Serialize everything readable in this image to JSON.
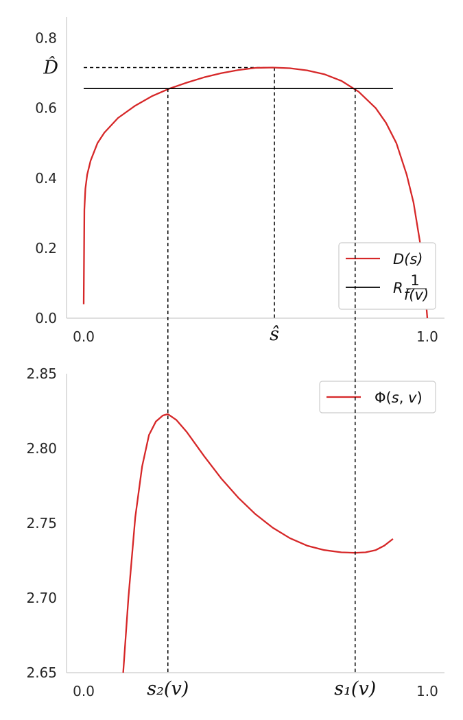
{
  "chart_data": [
    {
      "type": "line",
      "title": "",
      "xlabel": "",
      "ylabel": "",
      "xlim": [
        -0.05,
        1.05
      ],
      "ylim": [
        0.0,
        0.86
      ],
      "xticks": [
        {
          "value": 0.0,
          "label": "0.0"
        },
        {
          "value": 0.555,
          "label": "ŝ"
        },
        {
          "value": 1.0,
          "label": "1.0"
        }
      ],
      "yticks": [
        {
          "value": 0.0,
          "label": "0.0"
        },
        {
          "value": 0.2,
          "label": "0.2"
        },
        {
          "value": 0.4,
          "label": "0.4"
        },
        {
          "value": 0.6,
          "label": "0.6"
        },
        {
          "value": 0.8,
          "label": "0.8"
        }
      ],
      "extra_ytick": {
        "value": 0.716,
        "label": "D̂"
      },
      "grid": false,
      "legend_position": "lower-right",
      "series": [
        {
          "name": "D(s)",
          "color": "#d62728",
          "x": [
            0.0,
            0.002,
            0.005,
            0.01,
            0.02,
            0.04,
            0.06,
            0.1,
            0.15,
            0.2,
            0.25,
            0.3,
            0.35,
            0.4,
            0.45,
            0.5,
            0.55,
            0.6,
            0.65,
            0.7,
            0.75,
            0.8,
            0.85,
            0.88,
            0.91,
            0.94,
            0.96,
            0.98,
            0.99,
            1.0
          ],
          "y": [
            0.04,
            0.31,
            0.37,
            0.41,
            0.45,
            0.5,
            0.53,
            0.572,
            0.607,
            0.635,
            0.656,
            0.673,
            0.688,
            0.7,
            0.709,
            0.715,
            0.716,
            0.714,
            0.708,
            0.697,
            0.678,
            0.647,
            0.6,
            0.558,
            0.5,
            0.41,
            0.33,
            0.21,
            0.12,
            0.0
          ]
        },
        {
          "name": "R 1/f(v)",
          "color": "#000000",
          "x": [
            0.0,
            0.9
          ],
          "y": [
            0.656,
            0.656
          ]
        }
      ]
    },
    {
      "type": "line",
      "title": "",
      "xlabel": "",
      "ylabel": "",
      "xlim": [
        -0.05,
        1.05
      ],
      "ylim": [
        2.65,
        2.85
      ],
      "xticks": [
        {
          "value": 0.0,
          "label": "0.0"
        },
        {
          "value": 0.245,
          "label": "s₂(v)"
        },
        {
          "value": 0.79,
          "label": "s₁(v)"
        },
        {
          "value": 1.0,
          "label": "1.0"
        }
      ],
      "yticks": [
        {
          "value": 2.65,
          "label": "2.65"
        },
        {
          "value": 2.7,
          "label": "2.70"
        },
        {
          "value": 2.75,
          "label": "2.75"
        },
        {
          "value": 2.8,
          "label": "2.80"
        },
        {
          "value": 2.85,
          "label": "2.85"
        }
      ],
      "grid": false,
      "legend_position": "upper-right",
      "series": [
        {
          "name": "Φ(s, v)",
          "color": "#d62728",
          "x": [
            0.115,
            0.13,
            0.15,
            0.17,
            0.19,
            0.21,
            0.23,
            0.245,
            0.27,
            0.3,
            0.35,
            0.4,
            0.45,
            0.5,
            0.55,
            0.6,
            0.65,
            0.7,
            0.75,
            0.79,
            0.82,
            0.85,
            0.875,
            0.9
          ],
          "y": [
            2.65,
            2.7,
            2.754,
            2.788,
            2.809,
            2.818,
            2.822,
            2.823,
            2.819,
            2.811,
            2.795,
            2.78,
            2.767,
            2.756,
            2.747,
            2.74,
            2.735,
            2.732,
            2.7305,
            2.7302,
            2.7305,
            2.732,
            2.735,
            2.7395
          ]
        }
      ]
    }
  ]
}
